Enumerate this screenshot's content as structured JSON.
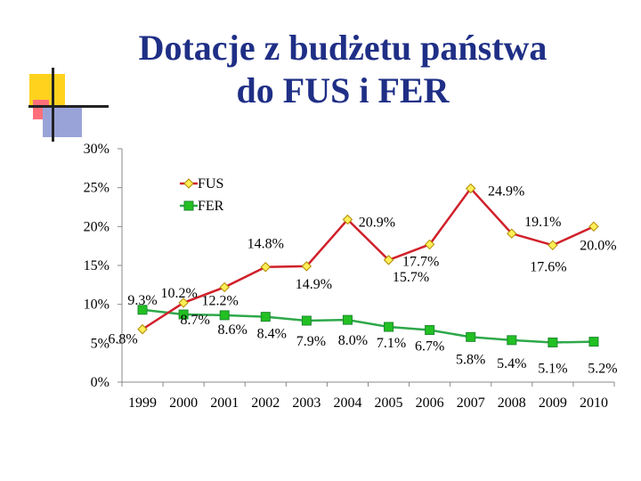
{
  "title_line1": "Dotacje z budżetu państwa",
  "title_line2": "do FUS i FER",
  "colors": {
    "title": "#1f2f86",
    "fus_line": "#d0202a",
    "fus_marker": "#ffee58",
    "fer_line": "#2ea84a",
    "fer_marker": "#22c022"
  },
  "chart_data": {
    "type": "line",
    "categories": [
      "1999",
      "2000",
      "2001",
      "2002",
      "2003",
      "2004",
      "2005",
      "2006",
      "2007",
      "2008",
      "2009",
      "2010"
    ],
    "y_ticks": [
      "0%",
      "5%",
      "10%",
      "15%",
      "20%",
      "25%",
      "30%"
    ],
    "ylim": [
      0,
      30
    ],
    "legend_position": "top-center",
    "grid": false,
    "series": [
      {
        "name": "FUS",
        "values": [
          6.8,
          10.2,
          12.2,
          14.8,
          14.9,
          20.9,
          15.7,
          17.7,
          24.9,
          19.1,
          17.6,
          20.0
        ],
        "labels": [
          "6.8%",
          "10.2%",
          "12.2%",
          "14.8%",
          "14.9%",
          "20.9%",
          "15.7%",
          "17.7%",
          "24.9%",
          "19.1%",
          "17.6%",
          "20.0%"
        ]
      },
      {
        "name": "FER",
        "values": [
          9.3,
          8.7,
          8.6,
          8.4,
          7.9,
          8.0,
          7.1,
          6.7,
          5.8,
          5.4,
          5.1,
          5.2
        ],
        "labels": [
          "9.3%",
          "8.7%",
          "8.6%",
          "8.4%",
          "7.9%",
          "8.0%",
          "7.1%",
          "6.7%",
          "5.8%",
          "5.4%",
          "5.1%",
          "5.2%"
        ]
      }
    ]
  }
}
